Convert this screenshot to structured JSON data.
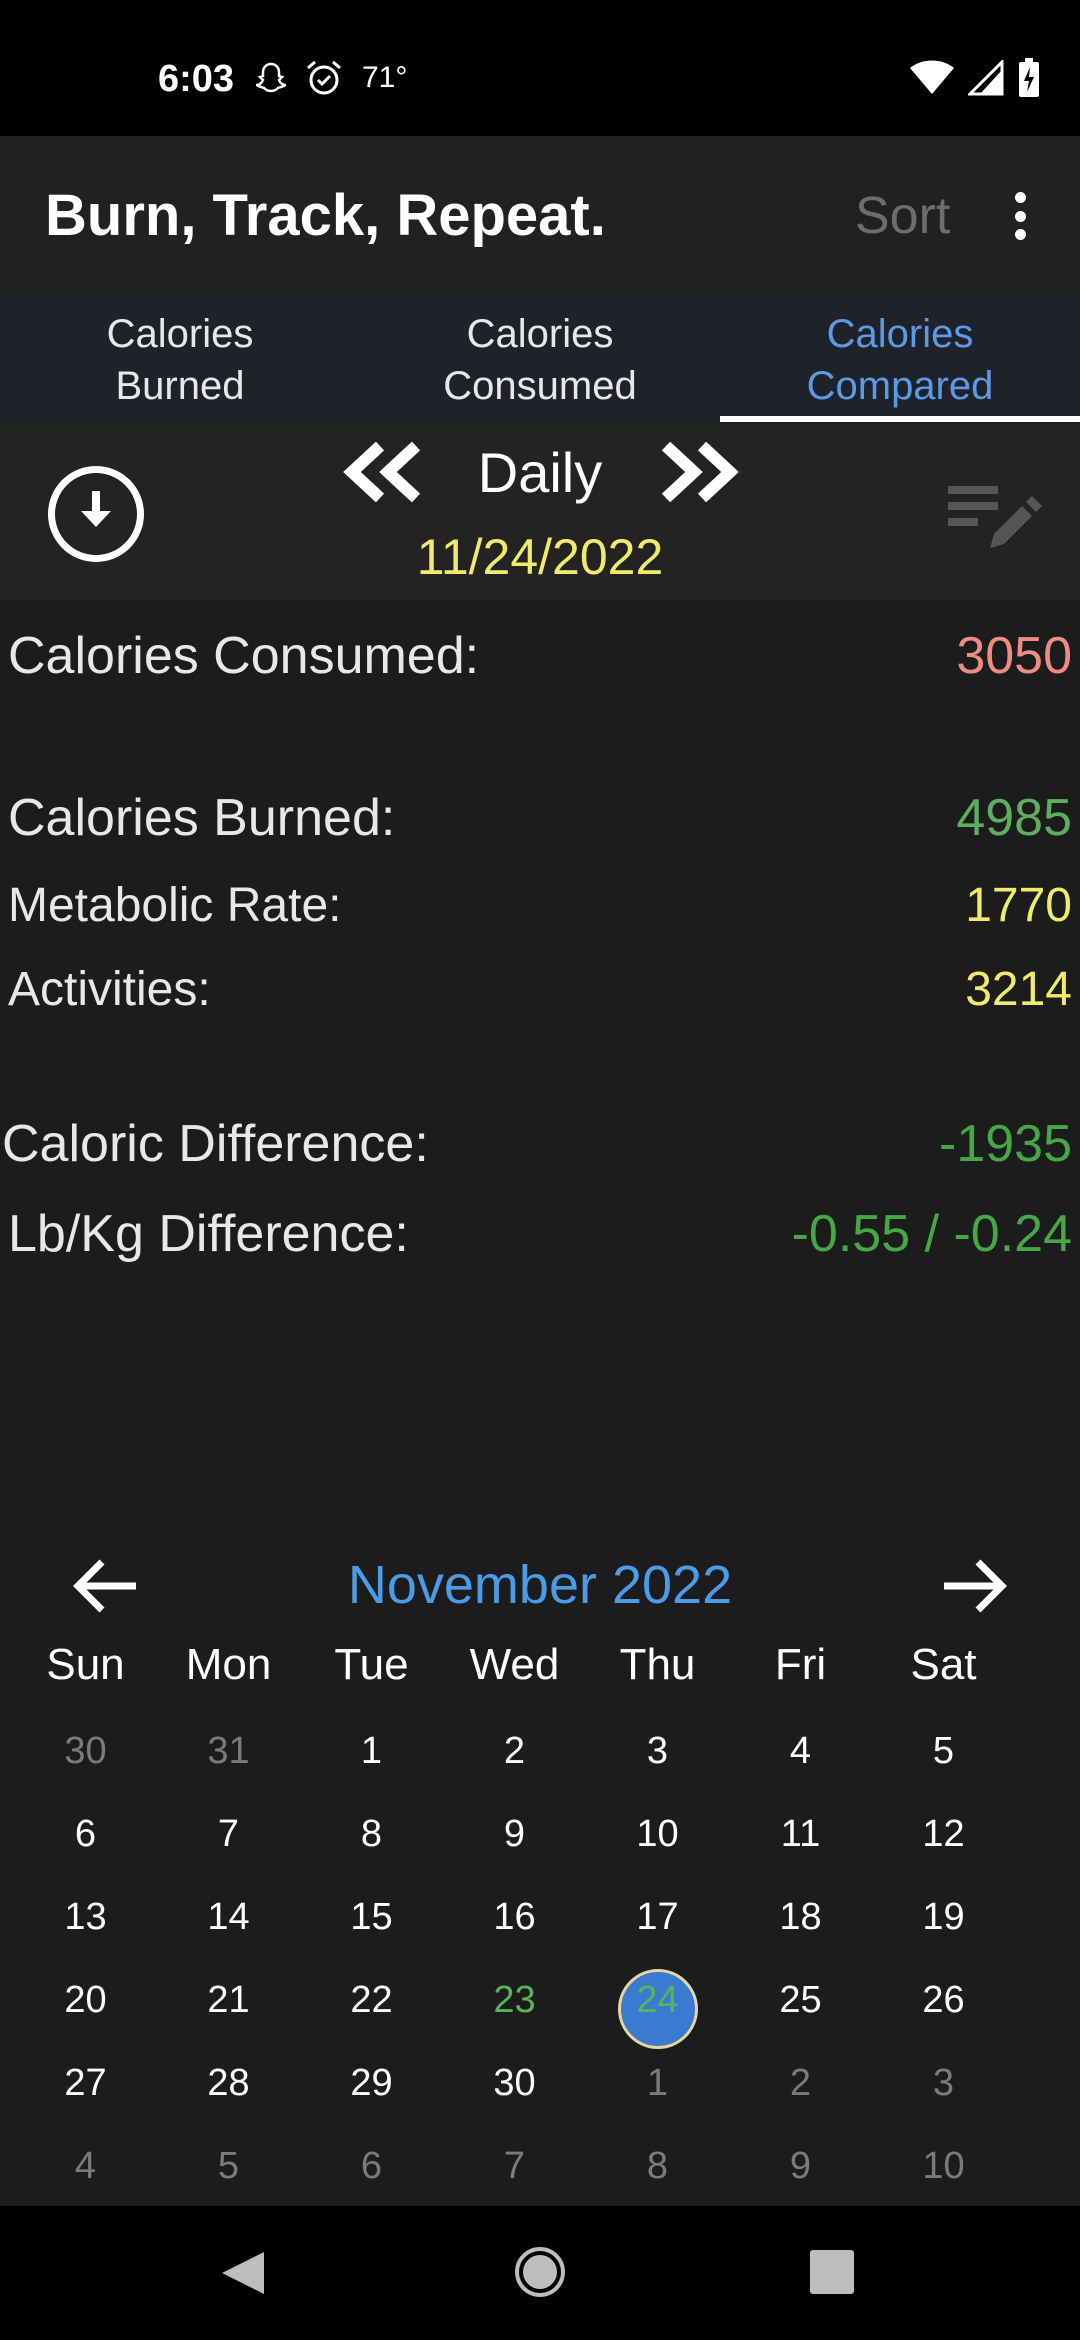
{
  "status_bar": {
    "time": "6:03",
    "temperature": "71°",
    "icons": [
      "snapchat-icon",
      "alarm-icon",
      "wifi-icon",
      "signal-icon",
      "battery-charging-icon"
    ]
  },
  "app_bar": {
    "title": "Burn, Track, Repeat.",
    "sort_label": "Sort",
    "overflow_icon": "more-vert-icon"
  },
  "tabs": [
    {
      "line1": "Calories",
      "line2": "Burned",
      "active": false
    },
    {
      "line1": "Calories",
      "line2": "Consumed",
      "active": false
    },
    {
      "line1": "Calories",
      "line2": "Compared",
      "active": true
    }
  ],
  "period": {
    "label": "Daily",
    "date": "11/24/2022"
  },
  "stats": {
    "consumed": {
      "label": "Calories Consumed:",
      "value": "3050",
      "color": "#f08b82"
    },
    "burned": {
      "label": "Calories Burned:",
      "value": "4985",
      "color": "#5fae5f"
    },
    "metabolic": {
      "label": "Metabolic Rate:",
      "value": "1770",
      "color": "#f2ea6a"
    },
    "activities": {
      "label": "Activities:",
      "value": "3214",
      "color": "#f2ea6a"
    },
    "caloric_difference": {
      "label": "Caloric Difference:",
      "value": "-1935",
      "color": "#45a845"
    },
    "lbkg_difference": {
      "label": "Lb/Kg Difference:",
      "value": "-0.55 / -0.24",
      "color": "#45a845"
    }
  },
  "calendar": {
    "month_label": "November 2022",
    "weekdays": [
      "Sun",
      "Mon",
      "Tue",
      "Wed",
      "Thu",
      "Fri",
      "Sat"
    ],
    "weeks": [
      [
        {
          "d": "30",
          "out": true
        },
        {
          "d": "31",
          "out": true
        },
        {
          "d": "1"
        },
        {
          "d": "2"
        },
        {
          "d": "3"
        },
        {
          "d": "4"
        },
        {
          "d": "5"
        }
      ],
      [
        {
          "d": "6"
        },
        {
          "d": "7"
        },
        {
          "d": "8"
        },
        {
          "d": "9"
        },
        {
          "d": "10"
        },
        {
          "d": "11"
        },
        {
          "d": "12"
        }
      ],
      [
        {
          "d": "13"
        },
        {
          "d": "14"
        },
        {
          "d": "15"
        },
        {
          "d": "16"
        },
        {
          "d": "17"
        },
        {
          "d": "18"
        },
        {
          "d": "19"
        }
      ],
      [
        {
          "d": "20"
        },
        {
          "d": "21"
        },
        {
          "d": "22"
        },
        {
          "d": "23",
          "today": true
        },
        {
          "d": "24",
          "selected": true
        },
        {
          "d": "25"
        },
        {
          "d": "26"
        }
      ],
      [
        {
          "d": "27"
        },
        {
          "d": "28"
        },
        {
          "d": "29"
        },
        {
          "d": "30"
        },
        {
          "d": "1",
          "out": true
        },
        {
          "d": "2",
          "out": true
        },
        {
          "d": "3",
          "out": true
        }
      ],
      [
        {
          "d": "4",
          "out": true
        },
        {
          "d": "5",
          "out": true
        },
        {
          "d": "6",
          "out": true
        },
        {
          "d": "7",
          "out": true
        },
        {
          "d": "8",
          "out": true
        },
        {
          "d": "9",
          "out": true
        },
        {
          "d": "10",
          "out": true
        }
      ]
    ]
  }
}
